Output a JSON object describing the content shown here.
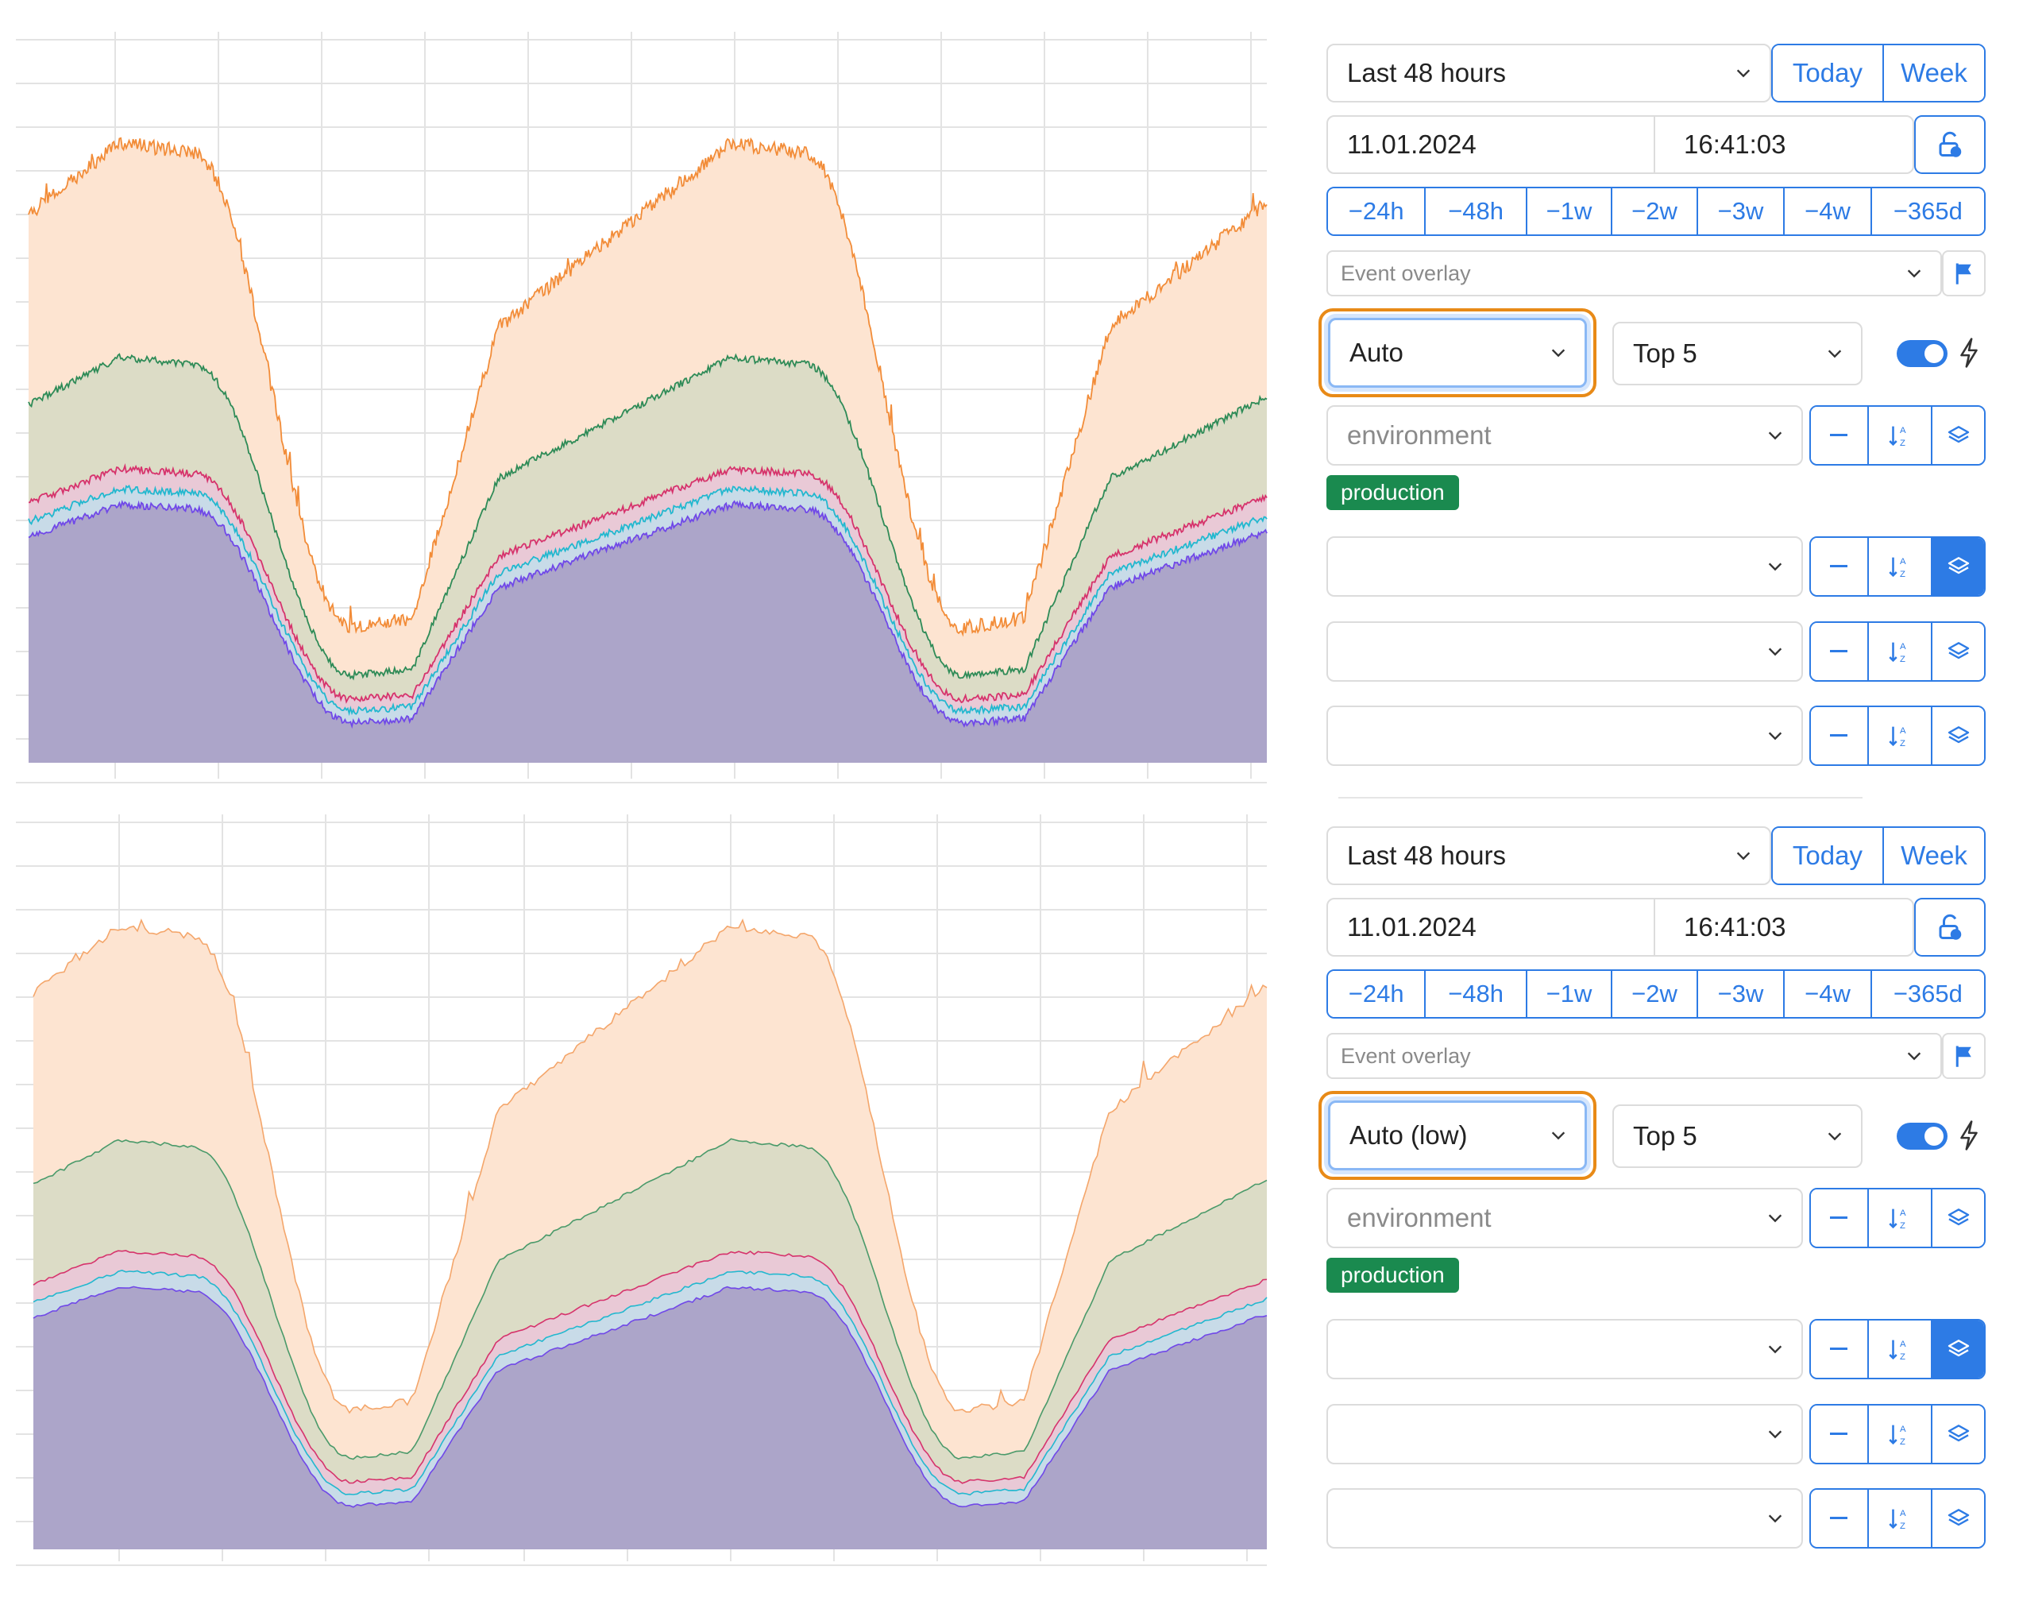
{
  "charts": [
    {
      "name": "chart-auto",
      "series_colors": [
        "#f28c38",
        "#2e8b57",
        "#d6336c",
        "#22b8cf",
        "#7048e8"
      ],
      "fill_colors": [
        "#fde4d1",
        "#dcdcc6",
        "#e9c9d6",
        "#c8dbe8",
        "#aca5c9"
      ]
    },
    {
      "name": "chart-auto-low",
      "series_colors": [
        "#f4a66b",
        "#4a9a6a",
        "#d6336c",
        "#22b8cf",
        "#7048e8"
      ],
      "fill_colors": [
        "#fde4d1",
        "#dcdcc6",
        "#e9c9d6",
        "#c8dbe8",
        "#aca5c9"
      ]
    }
  ],
  "panels": [
    {
      "range_select": "Last 48 hours",
      "today": "Today",
      "week": "Week",
      "date": "11.01.2024",
      "time": "16:41:03",
      "offsets": [
        "−24h",
        "−48h",
        "−1w",
        "−2w",
        "−3w",
        "−4w",
        "−365d"
      ],
      "event_overlay_placeholder": "Event overlay",
      "resolution": "Auto",
      "topn": "Top 5",
      "group1_placeholder": "environment",
      "tag": "production",
      "accent": "#2d7be5",
      "highlight": "#e88a17"
    },
    {
      "range_select": "Last 48 hours",
      "today": "Today",
      "week": "Week",
      "date": "11.01.2024",
      "time": "16:41:03",
      "offsets": [
        "−24h",
        "−48h",
        "−1w",
        "−2w",
        "−3w",
        "−4w",
        "−365d"
      ],
      "event_overlay_placeholder": "Event overlay",
      "resolution": "Auto (low)",
      "topn": "Top 5",
      "group1_placeholder": "environment",
      "tag": "production",
      "accent": "#2d7be5",
      "highlight": "#e88a17"
    }
  ],
  "icons": {
    "chevron": "chevron-down-icon",
    "unlock": "unlock-icon",
    "flag": "flag-icon",
    "bolt": "bolt-icon",
    "minus": "minus-icon",
    "sort": "sort-az-icon",
    "layers": "layers-icon"
  }
}
